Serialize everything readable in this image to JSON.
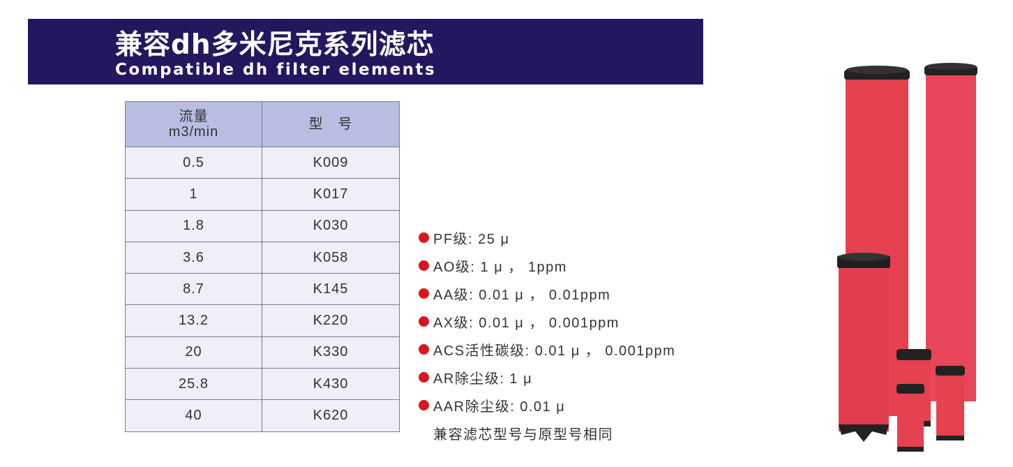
{
  "header": {
    "title_cn": "兼容dh多米尼克系列滤芯",
    "title_en": "Compatible dh filter elements",
    "color": "#24175f"
  },
  "table": {
    "headers": {
      "flow_line1": "流量",
      "flow_line2": "m3/min",
      "model": "型　号"
    },
    "rows": [
      {
        "flow": "0.5",
        "model": "K009"
      },
      {
        "flow": "1",
        "model": "K017"
      },
      {
        "flow": "1.8",
        "model": "K030"
      },
      {
        "flow": "3.6",
        "model": "K058"
      },
      {
        "flow": "8.7",
        "model": "K145"
      },
      {
        "flow": "13.2",
        "model": "K220"
      },
      {
        "flow": "20",
        "model": "K330"
      },
      {
        "flow": "25.8",
        "model": "K430"
      },
      {
        "flow": "40",
        "model": "K620"
      }
    ]
  },
  "specs": [
    "PF级: 25 μ",
    "AO级: 1 μ ， 1ppm",
    "AA级: 0.01 μ ， 0.01ppm",
    "AX级: 0.01 μ ， 0.001ppm",
    "ACS活性碳级: 0.01 μ ， 0.001ppm",
    "AR除尘级: 1 μ",
    "AAR除尘级: 0.01 μ"
  ],
  "note": "兼容滤芯型号与原型号相同",
  "bullet_color": "#d8161d",
  "photo": {
    "icon": "filter-elements-photo",
    "body_color": "#e5414f",
    "cap_color": "#222222"
  }
}
